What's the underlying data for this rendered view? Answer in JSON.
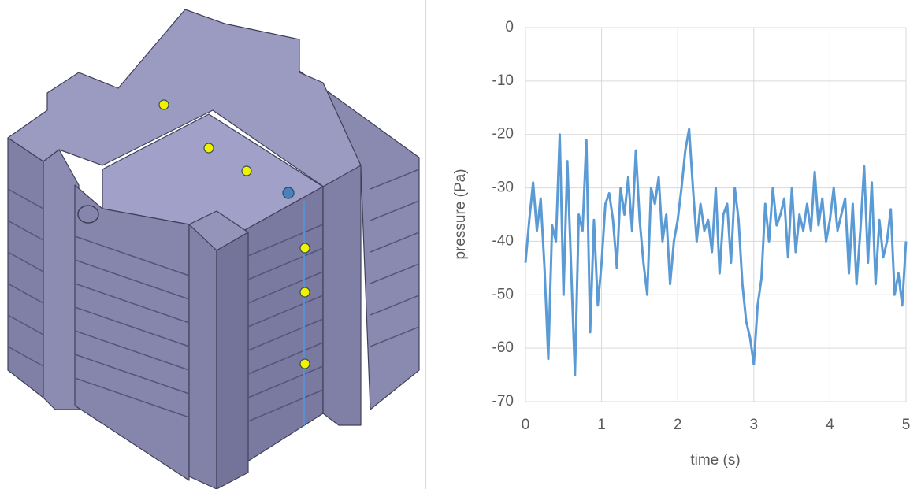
{
  "chart_data": {
    "type": "line",
    "xlabel": "time (s)",
    "ylabel": "pressure (Pa)",
    "x": [
      0,
      0.05,
      0.1,
      0.15,
      0.2,
      0.25,
      0.3,
      0.35,
      0.4,
      0.45,
      0.5,
      0.55,
      0.6,
      0.65,
      0.7,
      0.75,
      0.8,
      0.85,
      0.9,
      0.95,
      1,
      1.05,
      1.1,
      1.15,
      1.2,
      1.25,
      1.3,
      1.35,
      1.4,
      1.45,
      1.5,
      1.55,
      1.6,
      1.65,
      1.7,
      1.75,
      1.8,
      1.85,
      1.9,
      1.95,
      2,
      2.05,
      2.1,
      2.15,
      2.2,
      2.25,
      2.3,
      2.35,
      2.4,
      2.45,
      2.5,
      2.55,
      2.6,
      2.65,
      2.7,
      2.75,
      2.8,
      2.85,
      2.9,
      2.95,
      3,
      3.05,
      3.1,
      3.15,
      3.2,
      3.25,
      3.3,
      3.35,
      3.4,
      3.45,
      3.5,
      3.55,
      3.6,
      3.65,
      3.7,
      3.75,
      3.8,
      3.85,
      3.9,
      3.95,
      4,
      4.05,
      4.1,
      4.15,
      4.2,
      4.25,
      4.3,
      4.35,
      4.4,
      4.45,
      4.5,
      4.55,
      4.6,
      4.65,
      4.7,
      4.75,
      4.8,
      4.85,
      4.9,
      4.95,
      5
    ],
    "values": [
      -44,
      -36,
      -29,
      -38,
      -32,
      -45,
      -62,
      -37,
      -40,
      -20,
      -50,
      -25,
      -45,
      -65,
      -35,
      -38,
      -21,
      -57,
      -36,
      -52,
      -44,
      -33,
      -31,
      -36,
      -45,
      -30,
      -35,
      -28,
      -38,
      -23,
      -36,
      -44,
      -50,
      -30,
      -33,
      -28,
      -40,
      -35,
      -48,
      -40,
      -36,
      -30,
      -23,
      -19,
      -30,
      -40,
      -33,
      -38,
      -36,
      -42,
      -30,
      -46,
      -35,
      -33,
      -44,
      -30,
      -36,
      -48,
      -55,
      -58,
      -63,
      -52,
      -47,
      -33,
      -40,
      -30,
      -37,
      -35,
      -32,
      -43,
      -30,
      -42,
      -35,
      -38,
      -33,
      -38,
      -27,
      -37,
      -32,
      -40,
      -36,
      -30,
      -38,
      -35,
      -32,
      -46,
      -33,
      -48,
      -38,
      -26,
      -44,
      -29,
      -48,
      -36,
      -43,
      -40,
      -34,
      -50,
      -46,
      -52,
      -40
    ],
    "color": "#5b9bd5",
    "xlim": [
      0,
      5
    ],
    "xticks": [
      0,
      1,
      2,
      3,
      4,
      5
    ],
    "ylim": [
      -70,
      0
    ],
    "yticks": [
      -70,
      -60,
      -50,
      -40,
      -30,
      -20,
      -10,
      0
    ],
    "grid": true
  }
}
